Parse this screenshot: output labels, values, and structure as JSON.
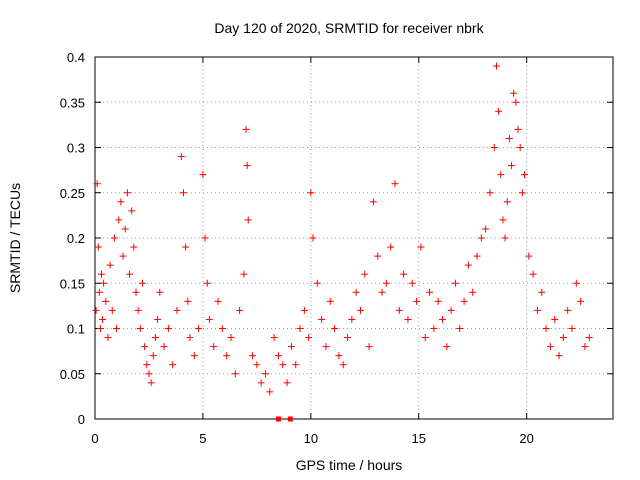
{
  "chart_data": {
    "type": "scatter",
    "title": "Day 120 of 2020, SRMTID for receiver nbrk",
    "xlabel": "GPS time / hours",
    "ylabel": "SRMTID / TECUs",
    "xlim": [
      0,
      24
    ],
    "ylim": [
      0,
      0.4
    ],
    "xticks": [
      0,
      5,
      10,
      15,
      20
    ],
    "xtick_labels": [
      "0",
      "5",
      "10",
      "15",
      "20"
    ],
    "yticks": [
      0,
      0.05,
      0.1,
      0.15,
      0.2,
      0.25,
      0.3,
      0.35,
      0.4
    ],
    "ytick_labels": [
      "0",
      "0.05",
      "0.1",
      "0.15",
      "0.2",
      "0.25",
      "0.3",
      "0.35",
      "0.4"
    ],
    "grid": true,
    "marker": "+",
    "color": "#ff0000",
    "series": [
      {
        "name": "SRMTID",
        "x": [
          0.05,
          0.1,
          0.15,
          0.2,
          0.25,
          0.3,
          0.35,
          0.4,
          0.5,
          0.6,
          0.7,
          0.8,
          0.9,
          1.0,
          1.1,
          1.2,
          1.3,
          1.4,
          1.5,
          1.6,
          1.7,
          1.8,
          1.9,
          2.0,
          2.1,
          2.2,
          2.3,
          2.4,
          2.5,
          2.6,
          2.7,
          2.8,
          2.9,
          3.0,
          3.2,
          3.4,
          3.6,
          3.8,
          4.0,
          4.1,
          4.2,
          4.3,
          4.4,
          4.6,
          4.8,
          5.0,
          5.1,
          5.2,
          5.3,
          5.5,
          5.7,
          5.9,
          6.1,
          6.3,
          6.5,
          6.7,
          6.9,
          7.0,
          7.05,
          7.1,
          7.3,
          7.5,
          7.7,
          7.9,
          8.1,
          8.3,
          8.5,
          8.7,
          8.9,
          9.1,
          9.3,
          9.5,
          9.7,
          9.9,
          10.0,
          10.1,
          10.3,
          10.5,
          10.7,
          10.9,
          11.1,
          11.3,
          11.5,
          11.7,
          11.9,
          12.1,
          12.3,
          12.5,
          12.7,
          12.9,
          13.1,
          13.3,
          13.5,
          13.7,
          13.9,
          14.1,
          14.3,
          14.5,
          14.7,
          14.9,
          15.1,
          15.3,
          15.5,
          15.7,
          15.9,
          16.1,
          16.3,
          16.5,
          16.7,
          16.9,
          17.1,
          17.3,
          17.5,
          17.7,
          17.9,
          18.1,
          18.3,
          18.5,
          18.6,
          18.7,
          18.8,
          18.9,
          19.0,
          19.1,
          19.2,
          19.3,
          19.4,
          19.5,
          19.6,
          19.7,
          19.8,
          19.9,
          20.1,
          20.3,
          20.5,
          20.7,
          20.9,
          21.1,
          21.3,
          21.5,
          21.7,
          21.9,
          22.1,
          22.3,
          22.5,
          22.7,
          22.9
        ],
        "y": [
          0.12,
          0.26,
          0.19,
          0.14,
          0.1,
          0.16,
          0.11,
          0.15,
          0.13,
          0.09,
          0.17,
          0.12,
          0.2,
          0.1,
          0.22,
          0.24,
          0.18,
          0.21,
          0.25,
          0.16,
          0.23,
          0.19,
          0.14,
          0.12,
          0.1,
          0.15,
          0.08,
          0.06,
          0.05,
          0.04,
          0.07,
          0.09,
          0.11,
          0.14,
          0.08,
          0.1,
          0.06,
          0.12,
          0.29,
          0.25,
          0.19,
          0.13,
          0.09,
          0.07,
          0.1,
          0.27,
          0.2,
          0.15,
          0.11,
          0.08,
          0.13,
          0.1,
          0.07,
          0.09,
          0.05,
          0.12,
          0.16,
          0.32,
          0.28,
          0.22,
          0.07,
          0.06,
          0.04,
          0.05,
          0.03,
          0.09,
          0.07,
          0.06,
          0.04,
          0.08,
          0.06,
          0.1,
          0.12,
          0.09,
          0.25,
          0.2,
          0.15,
          0.11,
          0.08,
          0.13,
          0.1,
          0.07,
          0.06,
          0.09,
          0.11,
          0.14,
          0.12,
          0.16,
          0.08,
          0.24,
          0.18,
          0.14,
          0.15,
          0.19,
          0.26,
          0.12,
          0.16,
          0.11,
          0.15,
          0.13,
          0.19,
          0.09,
          0.14,
          0.1,
          0.13,
          0.11,
          0.08,
          0.12,
          0.15,
          0.1,
          0.13,
          0.17,
          0.14,
          0.18,
          0.2,
          0.21,
          0.25,
          0.3,
          0.39,
          0.34,
          0.27,
          0.22,
          0.2,
          0.24,
          0.31,
          0.28,
          0.36,
          0.35,
          0.32,
          0.3,
          0.25,
          0.27,
          0.18,
          0.16,
          0.12,
          0.14,
          0.1,
          0.08,
          0.11,
          0.07,
          0.09,
          0.12,
          0.1,
          0.15,
          0.13,
          0.08,
          0.09
        ]
      }
    ],
    "bottom_markers": {
      "x": [
        8.5,
        9.05
      ],
      "y": [
        0,
        0
      ]
    }
  }
}
